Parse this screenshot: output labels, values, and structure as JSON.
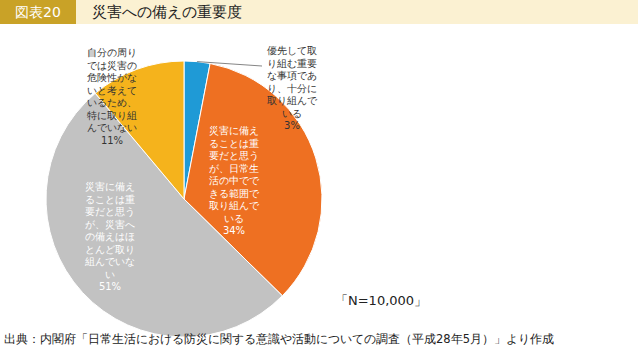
{
  "chart_data": {
    "type": "pie",
    "title": "災害への備えの重要度",
    "annotations": [
      "図表20",
      "「N=10,000」",
      "出典：内閣府「日常生活における防災に関する意識や活動についての調査（平成28年5月）」より作成"
    ],
    "categories": [
      "優先して取り組む重要な事項であり、十分に取り組んでいる",
      "災害に備えることは重要だと思うが、日常生活の中でできる範囲で取り組んでいる",
      "災害に備えることは重要だと思うが、災害への備えはほとんど取り組んでいない",
      "自分の周りでは災害の危険性がないと考えているため、特に取り組んでいない"
    ],
    "values": [
      3,
      34,
      51,
      11
    ],
    "value_labels": [
      "3%",
      "34%",
      "51%",
      "11%"
    ],
    "colors": [
      "#1f9ad6",
      "#ee7022",
      "#c2c2c2",
      "#f5b31c"
    ],
    "data_labels": true
  }
}
